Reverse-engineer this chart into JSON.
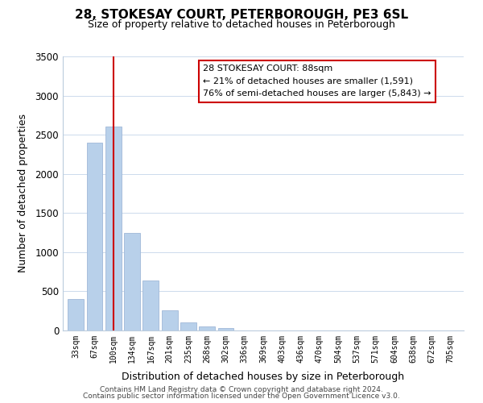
{
  "title_line1": "28, STOKESAY COURT, PETERBOROUGH, PE3 6SL",
  "title_line2": "Size of property relative to detached houses in Peterborough",
  "xlabel": "Distribution of detached houses by size in Peterborough",
  "ylabel": "Number of detached properties",
  "bar_labels": [
    "33sqm",
    "67sqm",
    "100sqm",
    "134sqm",
    "167sqm",
    "201sqm",
    "235sqm",
    "268sqm",
    "302sqm",
    "336sqm",
    "369sqm",
    "403sqm",
    "436sqm",
    "470sqm",
    "504sqm",
    "537sqm",
    "571sqm",
    "604sqm",
    "638sqm",
    "672sqm",
    "705sqm"
  ],
  "bar_values": [
    400,
    2400,
    2600,
    1250,
    640,
    260,
    100,
    50,
    30,
    0,
    0,
    0,
    0,
    0,
    0,
    0,
    0,
    0,
    0,
    0,
    0
  ],
  "bar_color": "#b8d0ea",
  "bar_edge_color": "#a0b8d8",
  "vline_x_index": 2,
  "vline_color": "#cc0000",
  "ylim": [
    0,
    3500
  ],
  "yticks": [
    0,
    500,
    1000,
    1500,
    2000,
    2500,
    3000,
    3500
  ],
  "annotation_title": "28 STOKESAY COURT: 88sqm",
  "annotation_line1": "← 21% of detached houses are smaller (1,591)",
  "annotation_line2": "76% of semi-detached houses are larger (5,843) →",
  "annotation_box_color": "#ffffff",
  "annotation_box_edge": "#cc0000",
  "footer_line1": "Contains HM Land Registry data © Crown copyright and database right 2024.",
  "footer_line2": "Contains public sector information licensed under the Open Government Licence v3.0.",
  "background_color": "#ffffff",
  "grid_color": "#ccdaec"
}
